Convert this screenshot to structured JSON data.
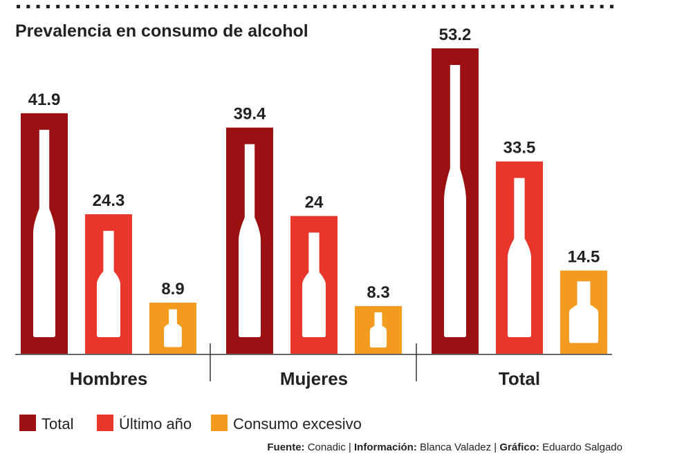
{
  "chart_data": {
    "type": "bar",
    "title": "Prevalencia en consumo de alcohol",
    "categories": [
      "Hombres",
      "Mujeres",
      "Total"
    ],
    "series": [
      {
        "name": "Total",
        "color": "#9b1111",
        "values": [
          41.9,
          39.4,
          53.2
        ]
      },
      {
        "name": "Último año",
        "color": "#e8362d",
        "values": [
          24.3,
          24,
          33.5
        ]
      },
      {
        "name": "Consumo excesivo",
        "color": "#f39b1f",
        "values": [
          8.9,
          8.3,
          14.5
        ]
      }
    ],
    "data_labels": [
      [
        "41.9",
        "24.3",
        "8.9"
      ],
      [
        "39.4",
        "24",
        "8.3"
      ],
      [
        "53.2",
        "33.5",
        "14.5"
      ]
    ],
    "ylim": [
      0,
      55
    ],
    "grid": false,
    "legend_placement": "bottom-left",
    "icon": "bottle-icon"
  },
  "credits": {
    "source_label": "Fuente:",
    "source": "Conadic",
    "info_label": "Información:",
    "info": "Blanca Valadez",
    "graphic_label": "Gráfico:",
    "graphic": "Eduardo Salgado"
  }
}
